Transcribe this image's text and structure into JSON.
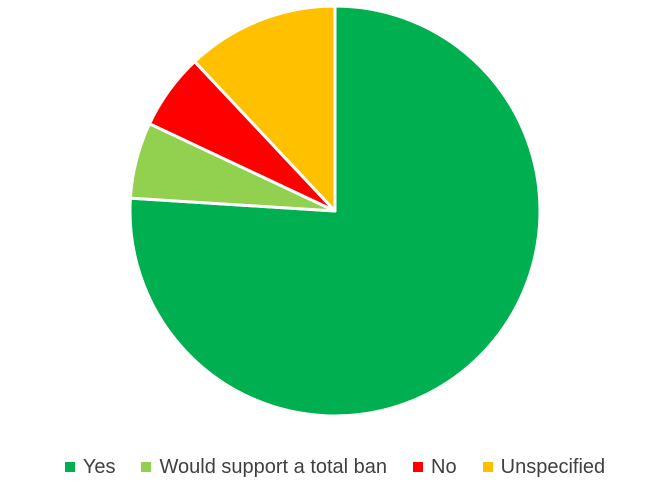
{
  "chart_data": {
    "type": "pie",
    "title": "",
    "start_angle_deg": 0,
    "direction": "clockwise",
    "slices": [
      {
        "label": "Yes",
        "value": 76,
        "color": "#00B050"
      },
      {
        "label": "Would support a total ban",
        "value": 6,
        "color": "#92D050"
      },
      {
        "label": "No",
        "value": 6,
        "color": "#FF0000"
      },
      {
        "label": "Unspecified",
        "value": 12,
        "color": "#FFC000"
      }
    ],
    "legend": {
      "position": "bottom",
      "entries": [
        "Yes",
        "Would support a total ban",
        "No",
        "Unspecified"
      ]
    }
  }
}
